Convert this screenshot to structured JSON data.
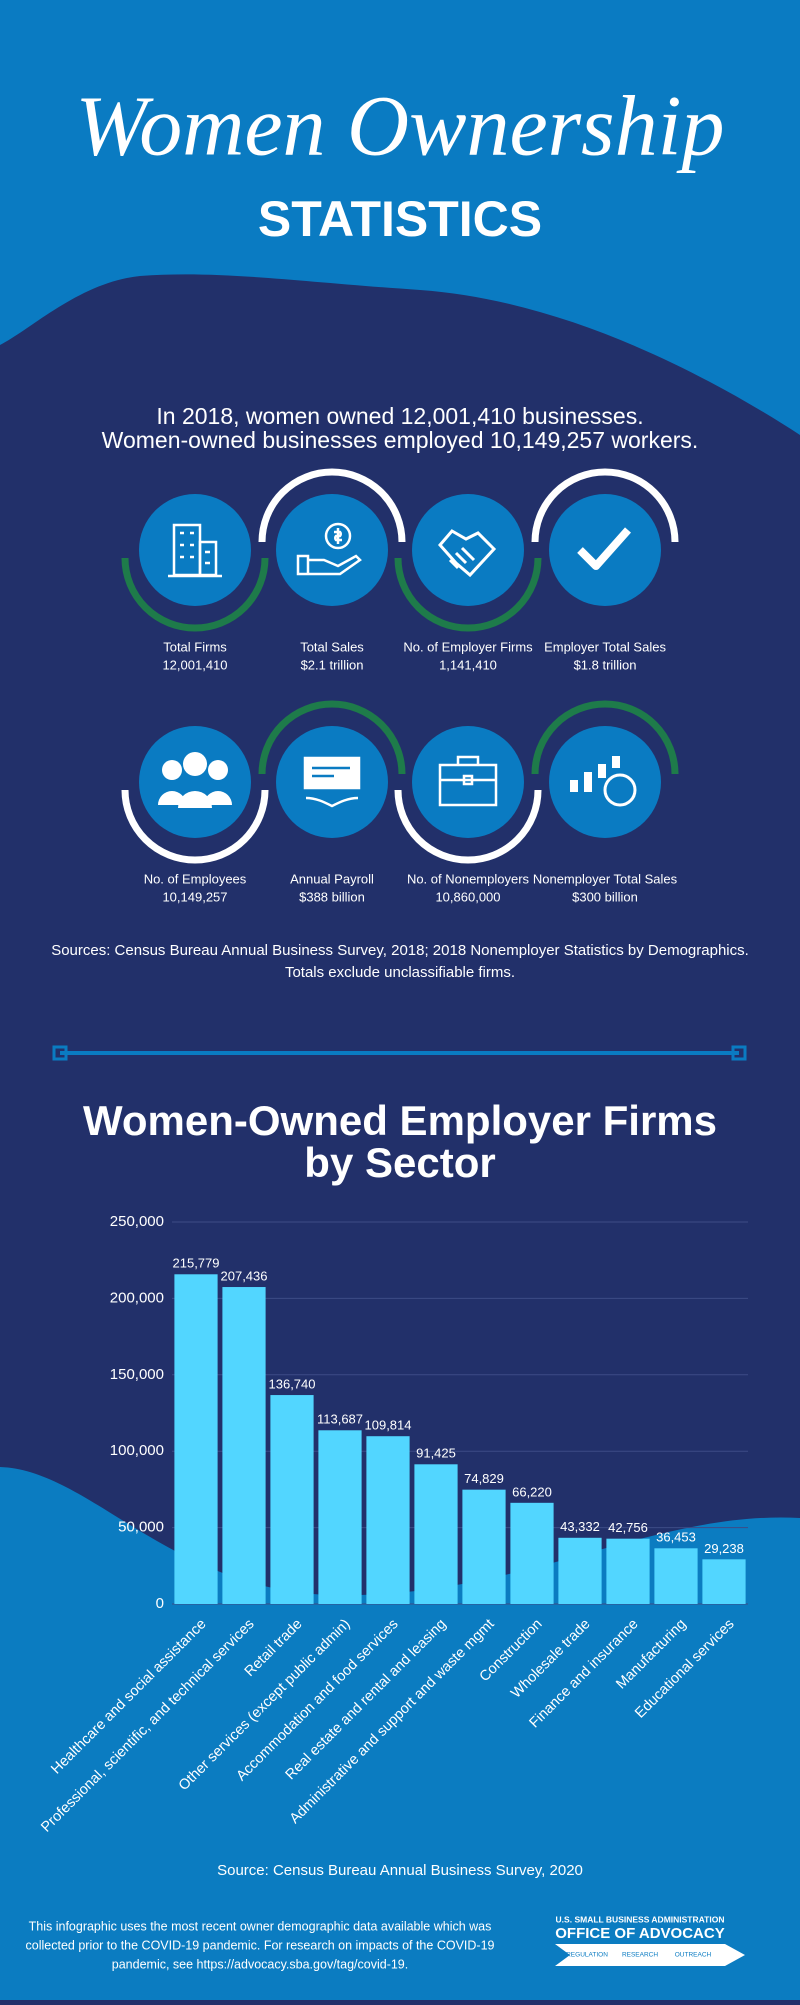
{
  "header": {
    "title": "Women Ownership",
    "subtitle": "STATISTICS"
  },
  "intro": [
    "In 2018, women owned 12,001,410 businesses.",
    "Women-owned businesses employed 10,149,257 workers."
  ],
  "stats": [
    {
      "label": "Total Firms",
      "value": "12,001,410"
    },
    {
      "label": "Total Sales",
      "value": "$2.1 trillion"
    },
    {
      "label": "No. of Employer Firms",
      "value": "1,141,410"
    },
    {
      "label": "Employer Total Sales",
      "value": "$1.8 trillion"
    },
    {
      "label": "No. of Employees",
      "value": "10,149,257"
    },
    {
      "label": "Annual Payroll",
      "value": "$388 billion"
    },
    {
      "label": "No. of Nonemployers",
      "value": "10,860,000"
    },
    {
      "label": "Nonemployer Total Sales",
      "value": "$300 billion"
    }
  ],
  "sources": [
    "Sources: Census Bureau Annual Business Survey, 2018; 2018 Nonemployer Statistics by Demographics.",
    "Totals exclude unclassifiable firms."
  ],
  "chart_data": {
    "type": "bar",
    "title": [
      "Women-Owned Employer Firms",
      "by Sector"
    ],
    "categories": [
      "Healthcare and social assistance",
      "Professional, scientific, and technical services",
      "Retail trade",
      "Other services (except public admin)",
      "Accommodation and food services",
      "Real estate and rental and leasing",
      "Administrative and support and waste mgmt",
      "Construction",
      "Wholesale trade",
      "Finance and insurance",
      "Manufacturing",
      "Educational services"
    ],
    "values": [
      215779,
      207436,
      136740,
      113687,
      109814,
      91425,
      74829,
      66220,
      43332,
      42756,
      36453,
      29238
    ],
    "value_labels": [
      "215,779",
      "207,436",
      "136,740",
      "113,687",
      "109,814",
      "91,425",
      "74,829",
      "66,220",
      "43,332",
      "42,756",
      "36,453",
      "29,238"
    ],
    "color": "#52d6ff",
    "ylim": [
      0,
      250000
    ],
    "yticks": [
      0,
      {
        "value": 50000,
        "label": "50,000"
      },
      {
        "value": 100000,
        "label": "100,000"
      },
      {
        "value": 150000,
        "label": "150,000"
      },
      {
        "value": 200000,
        "label": "200,000"
      },
      {
        "value": 250000,
        "label": "250,000"
      }
    ],
    "grid": true,
    "source": "Source: Census Bureau Annual Business Survey, 2020"
  },
  "footer": [
    "This infographic uses the most recent owner demographic data available which was",
    "collected prior to the COVID-19 pandemic. For research on impacts of the COVID-19",
    "pandemic, see https://advocacy.sba.gov/tag/covid-19."
  ],
  "logo": {
    "top": "U.S. SMALL BUSINESS ADMINISTRATION",
    "name": "OFFICE OF ADVOCACY",
    "items": [
      "REGULATION",
      "RESEARCH",
      "OUTREACH"
    ]
  }
}
